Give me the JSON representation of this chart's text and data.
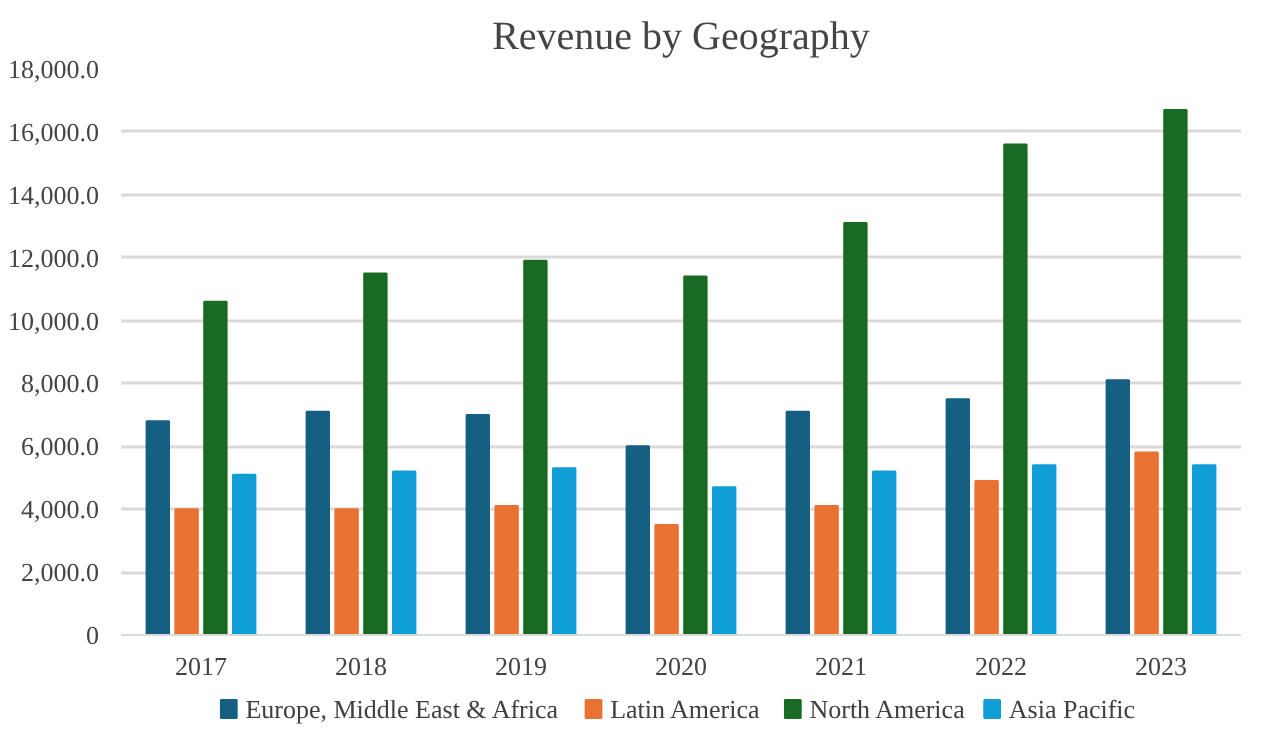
{
  "chart_data": {
    "type": "bar",
    "title": "Revenue by Geography",
    "categories": [
      "2017",
      "2018",
      "2019",
      "2020",
      "2021",
      "2022",
      "2023"
    ],
    "series": [
      {
        "name": "Europe, Middle East & Africa",
        "color": "#156082",
        "values": [
          6800,
          7100,
          7000,
          6000,
          7100,
          7500,
          8100
        ]
      },
      {
        "name": "Latin America",
        "color": "#e97132",
        "values": [
          4000,
          4000,
          4100,
          3500,
          4100,
          4900,
          5800
        ]
      },
      {
        "name": "North America",
        "color": "#196b24",
        "values": [
          10600,
          11500,
          11900,
          11400,
          13100,
          15600,
          16700
        ]
      },
      {
        "name": "Asia Pacific",
        "color": "#0f9ed5",
        "values": [
          5100,
          5200,
          5300,
          4700,
          5200,
          5400,
          5400
        ]
      }
    ],
    "ylim": [
      0,
      18000
    ],
    "yticks": [
      {
        "value": 0,
        "label": "0"
      },
      {
        "value": 2000,
        "label": "2,000.0"
      },
      {
        "value": 4000,
        "label": "4,000.0"
      },
      {
        "value": 6000,
        "label": "6,000.0"
      },
      {
        "value": 8000,
        "label": "8,000.0"
      },
      {
        "value": 10000,
        "label": "10,000.0"
      },
      {
        "value": 12000,
        "label": "12,000.0"
      },
      {
        "value": 14000,
        "label": "14,000.0"
      },
      {
        "value": 16000,
        "label": "16,000.0"
      },
      {
        "value": 18000,
        "label": "18,000.0"
      }
    ],
    "grid": "y",
    "legend": "bottom"
  }
}
